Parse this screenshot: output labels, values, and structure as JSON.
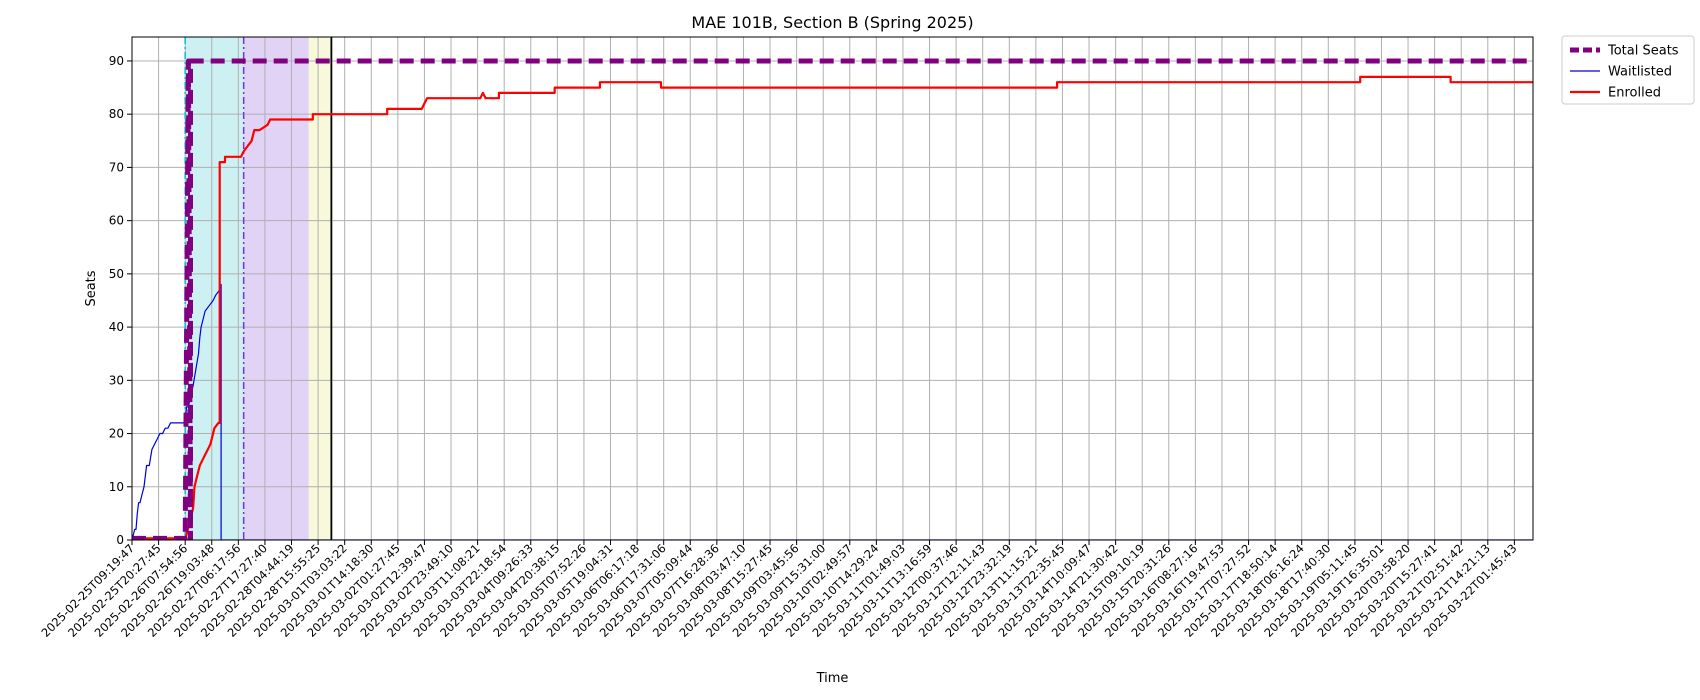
{
  "chart_data": {
    "type": "line",
    "title": "MAE 101B, Section B (Spring 2025)",
    "xlabel": "Time",
    "ylabel": "Seats",
    "ylim": [
      0,
      94.5
    ],
    "yticks": [
      0,
      10,
      20,
      30,
      40,
      50,
      60,
      70,
      80,
      90
    ],
    "grid": true,
    "legend_position": "outside-top-right",
    "x_tick_labels": [
      "2025-02-25T09:19:47",
      "2025-02-25T20:27:45",
      "2025-02-26T07:54:56",
      "2025-02-26T19:03:48",
      "2025-02-27T06:17:56",
      "2025-02-27T17:27:40",
      "2025-02-28T04:44:19",
      "2025-02-28T15:55:25",
      "2025-03-01T03:03:22",
      "2025-03-01T14:18:30",
      "2025-03-02T01:27:45",
      "2025-03-02T12:39:47",
      "2025-03-02T23:49:10",
      "2025-03-03T11:08:21",
      "2025-03-03T22:18:54",
      "2025-03-04T09:26:33",
      "2025-03-04T20:38:15",
      "2025-03-05T07:52:26",
      "2025-03-05T19:04:31",
      "2025-03-06T06:17:18",
      "2025-03-06T17:31:06",
      "2025-03-07T05:09:44",
      "2025-03-07T16:28:36",
      "2025-03-08T03:47:10",
      "2025-03-08T15:27:45",
      "2025-03-09T03:45:56",
      "2025-03-09T15:31:00",
      "2025-03-10T02:49:57",
      "2025-03-10T14:29:24",
      "2025-03-11T01:49:03",
      "2025-03-11T13:16:59",
      "2025-03-12T00:37:46",
      "2025-03-12T12:11:43",
      "2025-03-12T23:32:19",
      "2025-03-13T11:15:21",
      "2025-03-13T22:35:45",
      "2025-03-14T10:09:47",
      "2025-03-14T21:30:42",
      "2025-03-15T09:10:19",
      "2025-03-15T20:31:26",
      "2025-03-16T08:27:16",
      "2025-03-16T19:47:53",
      "2025-03-17T07:27:52",
      "2025-03-17T18:50:14",
      "2025-03-18T06:16:24",
      "2025-03-18T17:40:30",
      "2025-03-19T05:11:45",
      "2025-03-19T16:35:01",
      "2025-03-20T03:58:20",
      "2025-03-20T15:27:41",
      "2025-03-21T02:51:42",
      "2025-03-21T14:21:13",
      "2025-03-22T01:45:43"
    ],
    "x_range": [
      0,
      52.7
    ],
    "shaded_regions": [
      {
        "x": [
          2.0,
          4.2
        ],
        "color": "#cdf0f3"
      },
      {
        "x": [
          4.2,
          6.65
        ],
        "color": "#e0d3f5"
      },
      {
        "x": [
          6.65,
          7.5
        ],
        "color": "#f8f8da"
      }
    ],
    "vertical_lines": [
      {
        "x": 2.0,
        "color": "#00bcd4",
        "style": "dashdot"
      },
      {
        "x": 4.2,
        "color": "#7b2fe0",
        "style": "dashdot"
      },
      {
        "x": 7.5,
        "color": "#000000",
        "style": "solid"
      }
    ],
    "series": [
      {
        "name": "Total Seats",
        "color": "#800080",
        "style": "dashed-thick",
        "x": [
          0,
          2.0,
          2.0,
          2.12,
          2.2,
          2.2,
          52.7
        ],
        "y": [
          0.3,
          0.3,
          0,
          90,
          0,
          90,
          90
        ]
      },
      {
        "name": "Waitlisted",
        "color": "#0000dd",
        "style": "thin",
        "x": [
          0,
          0.1,
          0.15,
          0.2,
          0.25,
          0.3,
          0.35,
          0.45,
          0.55,
          0.65,
          0.75,
          0.85,
          0.95,
          1.05,
          1.15,
          1.25,
          1.35,
          1.45,
          1.6,
          1.8,
          2.0,
          2.05,
          2.12,
          2.2,
          2.3,
          2.4,
          2.5,
          2.55,
          2.6,
          2.75,
          2.9,
          3.05,
          3.15,
          3.3,
          3.35,
          3.35,
          52.7
        ],
        "y": [
          0,
          2,
          2,
          5,
          7,
          7,
          8,
          10,
          14,
          14,
          17,
          18,
          19,
          20,
          20,
          21,
          21,
          22,
          22,
          22,
          22,
          25,
          25,
          27,
          29,
          32,
          35,
          38,
          40,
          43,
          44,
          45,
          46,
          47,
          48,
          0,
          0
        ]
      },
      {
        "name": "Enrolled",
        "color": "#ff0000",
        "style": "thick",
        "x": [
          0,
          1.1,
          1.1,
          1.9,
          2.0,
          2.15,
          2.3,
          2.35,
          2.45,
          2.55,
          2.65,
          2.75,
          2.85,
          2.95,
          3.1,
          3.25,
          3.3,
          3.3,
          3.5,
          3.5,
          3.9,
          4.1,
          4.2,
          4.35,
          4.5,
          4.6,
          4.6,
          4.8,
          5.1,
          5.2,
          6.8,
          6.8,
          9.6,
          9.6,
          10.9,
          11.0,
          11.1,
          13.1,
          13.2,
          13.3,
          13.3,
          13.8,
          13.8,
          15.9,
          15.9,
          17.6,
          17.6,
          19.9,
          19.9,
          34.8,
          34.8,
          46.2,
          46.2,
          49.6,
          49.6,
          52.7
        ],
        "y": [
          0.3,
          0.3,
          0.3,
          0.3,
          0,
          3,
          6,
          10,
          12,
          14,
          15,
          16,
          17,
          18,
          21,
          22,
          22,
          71,
          71,
          72,
          72,
          72,
          73,
          74,
          75,
          77,
          77,
          77,
          78,
          79,
          79,
          80,
          80,
          81,
          81,
          82,
          83,
          83,
          84,
          83,
          83,
          83,
          84,
          84,
          85,
          85,
          86,
          86,
          85,
          85,
          86,
          86,
          87,
          87,
          86,
          86
        ]
      }
    ]
  }
}
